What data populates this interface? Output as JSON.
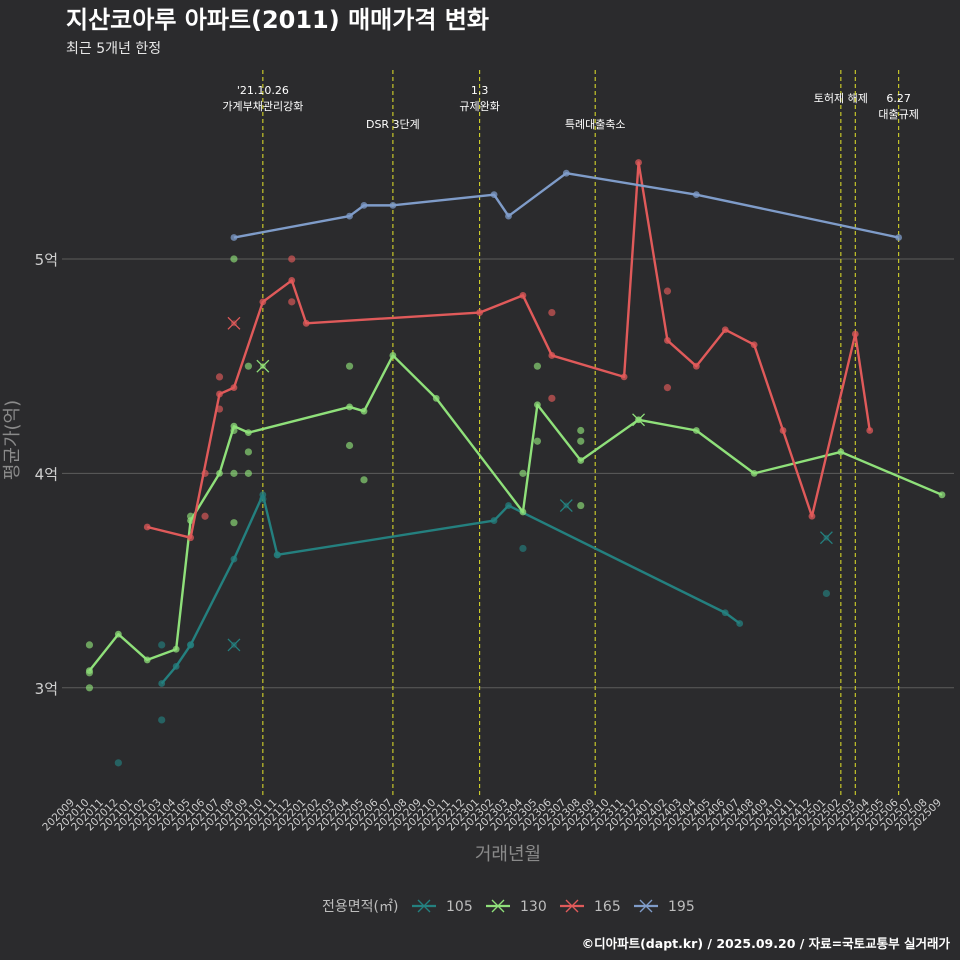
{
  "chart_data": {
    "type": "line",
    "title": "지산코아루 아파트(2011) 매매가격 변화",
    "subtitle": "최근 5개년 한정",
    "xlabel": "거래년월",
    "ylabel": "평균가(억)",
    "ylim": [
      2.5,
      5.9
    ],
    "yticks": [
      3,
      4,
      5
    ],
    "ytick_labels": [
      "3억",
      "4억",
      "5억"
    ],
    "grid": "horizontal",
    "x": [
      "202009",
      "202010",
      "202011",
      "202012",
      "202101",
      "202102",
      "202103",
      "202104",
      "202105",
      "202106",
      "202107",
      "202108",
      "202109",
      "202110",
      "202111",
      "202112",
      "202201",
      "202202",
      "202203",
      "202204",
      "202205",
      "202206",
      "202207",
      "202208",
      "202209",
      "202210",
      "202211",
      "202212",
      "202301",
      "202302",
      "202303",
      "202304",
      "202305",
      "202306",
      "202307",
      "202308",
      "202309",
      "202310",
      "202311",
      "202312",
      "202401",
      "202402",
      "202403",
      "202404",
      "202405",
      "202406",
      "202407",
      "202408",
      "202409",
      "202410",
      "202411",
      "202412",
      "202501",
      "202502",
      "202503",
      "202504",
      "202505",
      "202506",
      "202507",
      "202508",
      "202509"
    ],
    "legend": {
      "title": "전용면적(㎡)",
      "position": "bottom"
    },
    "series": [
      {
        "name": "105",
        "color": "#24807f",
        "line": [
          [
            "202103",
            3.02
          ],
          [
            "202104",
            3.1
          ],
          [
            "202105",
            3.2
          ],
          [
            "202108",
            3.6
          ],
          [
            "202110",
            3.9
          ],
          [
            "202111",
            3.62
          ],
          [
            "202302",
            3.78
          ],
          [
            "202303",
            3.85
          ],
          [
            "202406",
            3.35
          ],
          [
            "202407",
            3.3
          ]
        ],
        "points": [
          [
            "202012",
            2.65
          ],
          [
            "202103",
            3.2
          ],
          [
            "202103",
            2.85
          ],
          [
            "202105",
            3.2
          ],
          [
            "202110",
            3.88
          ],
          [
            "202111",
            3.62
          ],
          [
            "202304",
            3.65
          ],
          [
            "202501",
            3.44
          ]
        ],
        "cross": [
          [
            "202108",
            3.2
          ],
          [
            "202307",
            3.85
          ],
          [
            "202501",
            3.7
          ]
        ]
      },
      {
        "name": "130",
        "color": "#8fe07a",
        "line": [
          [
            "202010",
            3.08
          ],
          [
            "202012",
            3.25
          ],
          [
            "202102",
            3.13
          ],
          [
            "202104",
            3.18
          ],
          [
            "202105",
            3.78
          ],
          [
            "202107",
            4.0
          ],
          [
            "202108",
            4.22
          ],
          [
            "202109",
            4.19
          ],
          [
            "202204",
            4.31
          ],
          [
            "202205",
            4.29
          ],
          [
            "202207",
            4.55
          ],
          [
            "202210",
            4.35
          ],
          [
            "202304",
            3.82
          ],
          [
            "202305",
            4.32
          ],
          [
            "202308",
            4.06
          ],
          [
            "202312",
            4.25
          ],
          [
            "202404",
            4.2
          ],
          [
            "202408",
            4.0
          ],
          [
            "202502",
            4.1
          ],
          [
            "202509",
            3.9
          ]
        ],
        "points": [
          [
            "202010",
            3.2
          ],
          [
            "202010",
            3.07
          ],
          [
            "202010",
            3.0
          ],
          [
            "202105",
            3.8
          ],
          [
            "202108",
            5.0
          ],
          [
            "202108",
            4.2
          ],
          [
            "202108",
            4.0
          ],
          [
            "202108",
            3.77
          ],
          [
            "202109",
            4.5
          ],
          [
            "202109",
            4.1
          ],
          [
            "202109",
            4.0
          ],
          [
            "202204",
            4.5
          ],
          [
            "202204",
            4.13
          ],
          [
            "202205",
            3.97
          ],
          [
            "202304",
            4.0
          ],
          [
            "202305",
            4.5
          ],
          [
            "202305",
            4.15
          ],
          [
            "202308",
            4.2
          ],
          [
            "202308",
            4.15
          ],
          [
            "202308",
            3.85
          ]
        ],
        "cross": [
          [
            "202110",
            4.5
          ],
          [
            "202312",
            4.25
          ]
        ]
      },
      {
        "name": "165",
        "color": "#e05a5a",
        "line": [
          [
            "202102",
            3.75
          ],
          [
            "202105",
            3.7
          ],
          [
            "202107",
            4.37
          ],
          [
            "202108",
            4.4
          ],
          [
            "202110",
            4.8
          ],
          [
            "202112",
            4.9
          ],
          [
            "202201",
            4.7
          ],
          [
            "202301",
            4.75
          ],
          [
            "202304",
            4.83
          ],
          [
            "202306",
            4.55
          ],
          [
            "202311",
            4.45
          ],
          [
            "202312",
            5.45
          ],
          [
            "202402",
            4.62
          ],
          [
            "202404",
            4.5
          ],
          [
            "202406",
            4.67
          ],
          [
            "202408",
            4.6
          ],
          [
            "202410",
            4.2
          ],
          [
            "202412",
            3.8
          ],
          [
            "202503",
            4.65
          ],
          [
            "202504",
            4.2
          ]
        ],
        "points": [
          [
            "202106",
            4.0
          ],
          [
            "202106",
            3.8
          ],
          [
            "202107",
            4.45
          ],
          [
            "202107",
            4.3
          ],
          [
            "202112",
            5.0
          ],
          [
            "202112",
            4.8
          ],
          [
            "202306",
            4.75
          ],
          [
            "202306",
            4.35
          ],
          [
            "202402",
            4.85
          ],
          [
            "202402",
            4.4
          ]
        ],
        "cross": [
          [
            "202108",
            4.7
          ]
        ]
      },
      {
        "name": "195",
        "color": "#7f9cc9",
        "line": [
          [
            "202108",
            5.1
          ],
          [
            "202204",
            5.2
          ],
          [
            "202205",
            5.25
          ],
          [
            "202207",
            5.25
          ],
          [
            "202302",
            5.3
          ],
          [
            "202303",
            5.2
          ],
          [
            "202307",
            5.4
          ],
          [
            "202404",
            5.3
          ],
          [
            "202506",
            5.1
          ]
        ],
        "points": [],
        "cross": []
      }
    ],
    "events": [
      {
        "x": "202110",
        "lines": [
          "'21.10.26",
          "가계부채관리강화"
        ],
        "row": 0
      },
      {
        "x": "202207",
        "lines": [
          "DSR 3단계"
        ],
        "row": 2
      },
      {
        "x": "202301",
        "lines": [
          "1.3",
          "규제완화"
        ],
        "row": 0
      },
      {
        "x": "202309",
        "lines": [
          "특례대출축소"
        ],
        "row": 2
      },
      {
        "x": "202502",
        "lines": [
          "토허제 해제"
        ],
        "row": 1
      },
      {
        "x": "202503",
        "lines": [],
        "row": 1
      },
      {
        "x": "202506",
        "lines": [
          "6.27",
          "대출규제"
        ],
        "row": 1
      }
    ]
  },
  "caption": "©디아파트(dapt.kr) / 2025.09.20 / 자료=국토교통부 실거래가"
}
